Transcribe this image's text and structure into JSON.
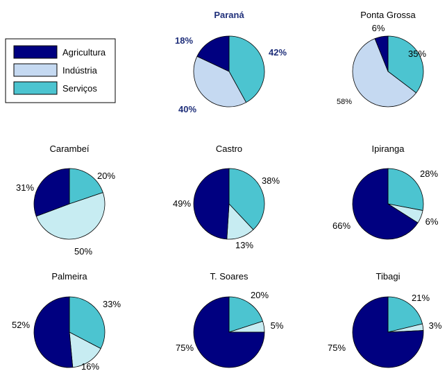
{
  "chart_data": {
    "type": "pie",
    "legend": {
      "placement": "top-left",
      "entries": [
        {
          "label": "Agricultura",
          "color": "#000080"
        },
        {
          "label": "Indústria",
          "color": "#c5d9f1"
        },
        {
          "label": "Serviços",
          "color": "#4cc4d0"
        }
      ]
    },
    "categories": [
      "Agricultura",
      "Indústria",
      "Serviços"
    ],
    "pies": [
      {
        "title": "Paraná",
        "values": [
          18,
          40,
          42
        ],
        "labels": [
          "18%",
          "40%",
          "42%"
        ],
        "emphasis": true
      },
      {
        "title": "Ponta Grossa",
        "values": [
          6,
          58,
          35
        ],
        "labels": [
          "6%",
          "58%",
          "35%"
        ]
      },
      {
        "title": "Carambeí",
        "values": [
          31,
          50,
          20
        ],
        "labels": [
          "31%",
          "50%",
          "20%"
        ]
      },
      {
        "title": "Castro",
        "values": [
          49,
          13,
          38
        ],
        "labels": [
          "49%",
          "13%",
          "38%"
        ]
      },
      {
        "title": "Ipiranga",
        "values": [
          66,
          6,
          28
        ],
        "labels": [
          "66%",
          "6%",
          "28%"
        ]
      },
      {
        "title": "Palmeira",
        "values": [
          52,
          16,
          33
        ],
        "labels": [
          "52%",
          "16%",
          "33%"
        ]
      },
      {
        "title": "T. Soares",
        "values": [
          75,
          5,
          20
        ],
        "labels": [
          "75%",
          "5%",
          "20%"
        ]
      },
      {
        "title": "Tibagi",
        "values": [
          75,
          3,
          21
        ],
        "labels": [
          "75%",
          "3%",
          "21%"
        ]
      }
    ],
    "colors": {
      "agricultura": "#000080",
      "industria_ponta_grossa_parana": "#c5d9f1",
      "industria_others": "#c7ecf2",
      "servicos": "#4cc4d0",
      "emphasis_text": "#1f2f7a"
    }
  }
}
